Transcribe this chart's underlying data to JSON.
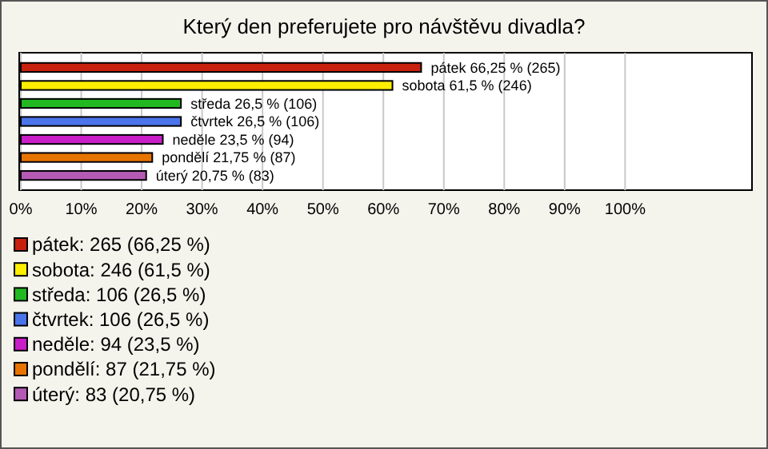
{
  "chart_data": {
    "type": "bar",
    "orientation": "horizontal",
    "title": "Který den preferujete pro návštěvu divadla?",
    "categories": [
      "pátek",
      "sobota",
      "středa",
      "čtvrtek",
      "neděle",
      "pondělí",
      "úterý"
    ],
    "values": [
      66.25,
      61.5,
      26.5,
      26.5,
      23.5,
      21.75,
      20.75
    ],
    "colors": [
      "#c8200e",
      "#ffee00",
      "#22b822",
      "#4a74ea",
      "#c81ec8",
      "#e87400",
      "#b45ab4"
    ],
    "value_labels": [
      "66,25 % (265)",
      "61,5 % (246)",
      "26,5 % (106)",
      "26,5 % (106)",
      "23,5 % (94)",
      "21,75 % (87)",
      "20,75 % (83)"
    ],
    "xlim": [
      0,
      121
    ],
    "xticks": [
      {
        "value": 0,
        "label": "0%"
      },
      {
        "value": 10,
        "label": "10%"
      },
      {
        "value": 20,
        "label": "20%"
      },
      {
        "value": 30,
        "label": "30%"
      },
      {
        "value": 40,
        "label": "40%"
      },
      {
        "value": 50,
        "label": "50%"
      },
      {
        "value": 60,
        "label": "60%"
      },
      {
        "value": 70,
        "label": "70%"
      },
      {
        "value": 80,
        "label": "80%"
      },
      {
        "value": 90,
        "label": "90%"
      },
      {
        "value": 100,
        "label": "100%"
      }
    ],
    "grid": "x",
    "annotations": [
      "pátek: 265 (66,25 %)",
      "sobota: 246 (61,5 %)",
      "středa: 106 (26,5 %)",
      "čtvrtek: 106 (26,5 %)",
      "neděle: 94 (23,5 %)",
      "pondělí: 87 (21,75 %)",
      "úterý: 83 (20,75 %)"
    ]
  }
}
